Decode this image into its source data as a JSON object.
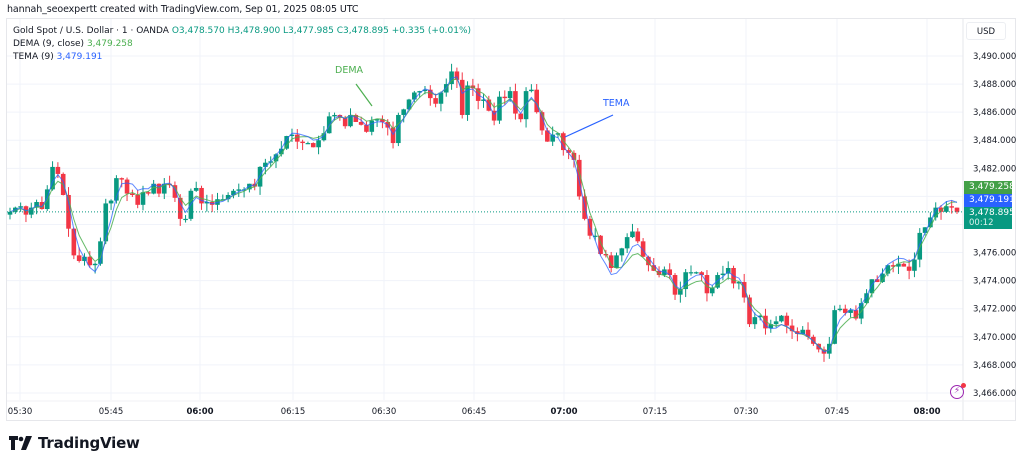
{
  "credit": "hannah_seoexpertt created with TradingView.com, Sep 01, 2025 08:05 UTC",
  "legend": {
    "symbol": "Gold Spot / U.S. Dollar · 1 · OANDA",
    "open": "O3,478.570",
    "high": "H3,478.900",
    "low": "L3,477.985",
    "close": "C3,478.895",
    "change": "+0.335 (+0.01%)",
    "dema_label": "DEMA (9, close)",
    "dema_value": "3,479.258",
    "tema_label": "TEMA (9)",
    "tema_value": "3,479.191"
  },
  "price_axis": {
    "currency": "USD",
    "ticks": [
      "3,490.000",
      "3,488.000",
      "3,486.000",
      "3,484.000",
      "3,482.000",
      "3,476.000",
      "3,474.000",
      "3,472.000",
      "3,470.000",
      "3,468.000",
      "3,466.000"
    ],
    "tag_dema": "3,479.258",
    "tag_tema": "3,479.191",
    "tag_price": "3,478.895",
    "countdown": "00:12"
  },
  "time_axis": {
    "ticks": [
      {
        "label": "05:30",
        "bold": false
      },
      {
        "label": "05:45",
        "bold": false
      },
      {
        "label": "06:00",
        "bold": true
      },
      {
        "label": "06:15",
        "bold": false
      },
      {
        "label": "06:30",
        "bold": false
      },
      {
        "label": "06:45",
        "bold": false
      },
      {
        "label": "07:00",
        "bold": true
      },
      {
        "label": "07:15",
        "bold": false
      },
      {
        "label": "07:30",
        "bold": false
      },
      {
        "label": "07:45",
        "bold": false
      },
      {
        "label": "08:00",
        "bold": true
      }
    ]
  },
  "annotations": {
    "dema": "DEMA",
    "tema": "TEMA"
  },
  "brand": {
    "name": "TradingView"
  },
  "colors": {
    "up": "#089981",
    "down": "#f23645",
    "dema": "#4caf50",
    "tema": "#2962ff",
    "grid": "#f0f3fa",
    "price_line": "#089981"
  },
  "chart_data": {
    "type": "candlestick",
    "title": "Gold Spot / U.S. Dollar · 1 · OANDA",
    "xlabel": "",
    "ylabel": "USD",
    "ylim": [
      3465.5,
      3490.5
    ],
    "x_ticks": [
      "05:30",
      "05:45",
      "06:00",
      "06:15",
      "06:30",
      "06:45",
      "07:00",
      "07:15",
      "07:30",
      "07:45",
      "08:00"
    ],
    "y_ticks": [
      3466,
      3468,
      3470,
      3472,
      3474,
      3476,
      3478,
      3480,
      3482,
      3484,
      3486,
      3488,
      3490
    ],
    "series": [
      {
        "name": "DEMA (9, close)",
        "last": 3479.258
      },
      {
        "name": "TEMA (9)",
        "last": 3479.191
      }
    ],
    "last_close": 3478.895,
    "closes": [
      3478.9,
      3479.2,
      3479.3,
      3478.7,
      3479.2,
      3479.6,
      3479.1,
      3480.5,
      3482.1,
      3481.6,
      3480.1,
      3477.7,
      3475.8,
      3475.4,
      3475.7,
      3475.1,
      3475.2,
      3476.8,
      3479.5,
      3479.7,
      3481.3,
      3481.2,
      3480.2,
      3480.1,
      3479.4,
      3480.3,
      3480.2,
      3480.9,
      3480.2,
      3480.9,
      3480.8,
      3479.9,
      3478.4,
      3478.4,
      3480.4,
      3480.6,
      3479.5,
      3479.6,
      3479.4,
      3479.8,
      3479.8,
      3480.1,
      3480.4,
      3480.5,
      3480.5,
      3480.9,
      3480.7,
      3482.1,
      3482.4,
      3482.5,
      3483.0,
      3483.4,
      3484.3,
      3484.4,
      3483.9,
      3483.8,
      3483.8,
      3483.5,
      3484.0,
      3484.5,
      3485.7,
      3485.8,
      3485.6,
      3485.0,
      3485.8,
      3485.3,
      3485.1,
      3484.6,
      3485.4,
      3485.5,
      3485.3,
      3484.9,
      3483.8,
      3485.8,
      3486.2,
      3486.9,
      3487.4,
      3487.5,
      3487.6,
      3487.0,
      3486.6,
      3487.4,
      3488.0,
      3488.9,
      3488.3,
      3485.8,
      3487.9,
      3487.7,
      3486.8,
      3486.9,
      3486.1,
      3485.4,
      3487.1,
      3487.0,
      3487.5,
      3485.9,
      3485.5,
      3487.5,
      3487.6,
      3486.0,
      3484.7,
      3483.9,
      3484.4,
      3484.5,
      3483.3,
      3483.1,
      3482.6,
      3480.0,
      3478.4,
      3477.2,
      3477.2,
      3475.9,
      3475.8,
      3474.9,
      3475.8,
      3476.3,
      3477.1,
      3477.5,
      3476.8,
      3475.7,
      3475.1,
      3474.7,
      3474.4,
      3474.8,
      3474.4,
      3473.0,
      3473.4,
      3474.6,
      3474.6,
      3474.6,
      3474.4,
      3473.1,
      3473.5,
      3474.4,
      3474.5,
      3474.9,
      3473.8,
      3473.9,
      3472.8,
      3470.9,
      3471.4,
      3471.5,
      3470.6,
      3470.9,
      3471.1,
      3471.5,
      3470.8,
      3470.4,
      3470.2,
      3470.5,
      3470.0,
      3469.5,
      3469.1,
      3468.8,
      3469.5,
      3471.9,
      3472.0,
      3471.7,
      3471.9,
      3471.3,
      3472.4,
      3473.1,
      3474.1,
      3473.9,
      3474.5,
      3475.1,
      3475.0,
      3475.2,
      3475.0,
      3474.7,
      3475.5,
      3477.4,
      3477.8,
      3478.5,
      3479.2,
      3478.9,
      3479.3,
      3479.2,
      3478.9
    ]
  }
}
